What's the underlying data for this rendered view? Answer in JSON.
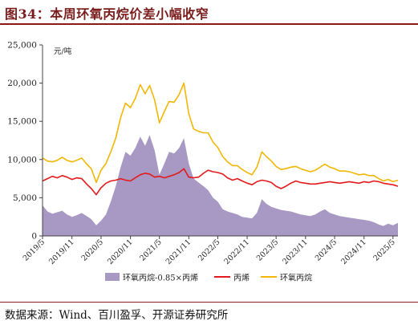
{
  "title": "图34：本周环氧丙烷价差小幅收窄",
  "source": "数据来源：Wind、百川盈孚、开源证券研究所",
  "chart_data": {
    "type": "line+area",
    "unit": "元/吨",
    "ylim": [
      0,
      25000
    ],
    "y_ticks": [
      "0",
      "5,000",
      "10,000",
      "15,000",
      "20,000",
      "25,000"
    ],
    "x_ticks": [
      "2019/5",
      "2019/11",
      "2020/5",
      "2020/11",
      "2021/5",
      "2021/11",
      "2022/5",
      "2022/11",
      "2023/5",
      "2023/11",
      "2024/5",
      "2024/11",
      "2025/5"
    ],
    "legend_placement": "bottom",
    "colors": {
      "spread": "#a898c4",
      "propylene": "#e31a1c",
      "po": "#f2b705"
    },
    "series": [
      {
        "name": "环氧丙烷-0.85×丙烯",
        "kind": "area",
        "points": [
          [
            "2019-05-01",
            4000
          ],
          [
            "2019-06-01",
            3200
          ],
          [
            "2019-07-01",
            2900
          ],
          [
            "2019-08-01",
            3100
          ],
          [
            "2019-09-01",
            3300
          ],
          [
            "2019-10-01",
            2800
          ],
          [
            "2019-11-01",
            2500
          ],
          [
            "2019-12-01",
            2700
          ],
          [
            "2020-01-01",
            3000
          ],
          [
            "2020-02-01",
            2600
          ],
          [
            "2020-03-01",
            2200
          ],
          [
            "2020-04-01",
            1400
          ],
          [
            "2020-05-01",
            2000
          ],
          [
            "2020-06-01",
            2800
          ],
          [
            "2020-07-01",
            4500
          ],
          [
            "2020-08-01",
            6500
          ],
          [
            "2020-09-01",
            9000
          ],
          [
            "2020-10-01",
            11000
          ],
          [
            "2020-11-01",
            10500
          ],
          [
            "2020-12-01",
            11500
          ],
          [
            "2021-01-01",
            13000
          ],
          [
            "2021-02-01",
            11800
          ],
          [
            "2021-03-01",
            13200
          ],
          [
            "2021-04-01",
            11200
          ],
          [
            "2021-05-01",
            8000
          ],
          [
            "2021-06-01",
            9500
          ],
          [
            "2021-07-01",
            11000
          ],
          [
            "2021-08-01",
            10800
          ],
          [
            "2021-09-01",
            11500
          ],
          [
            "2021-10-01",
            12800
          ],
          [
            "2021-11-01",
            9500
          ],
          [
            "2021-12-01",
            7500
          ],
          [
            "2022-01-01",
            7000
          ],
          [
            "2022-02-01",
            6500
          ],
          [
            "2022-03-01",
            6000
          ],
          [
            "2022-04-01",
            5000
          ],
          [
            "2022-05-01",
            4500
          ],
          [
            "2022-06-01",
            3500
          ],
          [
            "2022-07-01",
            3200
          ],
          [
            "2022-08-01",
            3000
          ],
          [
            "2022-09-01",
            2800
          ],
          [
            "2022-10-01",
            2500
          ],
          [
            "2022-11-01",
            2400
          ],
          [
            "2022-12-01",
            2300
          ],
          [
            "2023-01-01",
            3000
          ],
          [
            "2023-02-01",
            4800
          ],
          [
            "2023-03-01",
            4200
          ],
          [
            "2023-04-01",
            3800
          ],
          [
            "2023-05-01",
            3600
          ],
          [
            "2023-06-01",
            3400
          ],
          [
            "2023-07-01",
            3300
          ],
          [
            "2023-08-01",
            3200
          ],
          [
            "2023-09-01",
            3000
          ],
          [
            "2023-10-01",
            2800
          ],
          [
            "2023-11-01",
            2700
          ],
          [
            "2023-12-01",
            2600
          ],
          [
            "2024-01-01",
            2800
          ],
          [
            "2024-02-01",
            3200
          ],
          [
            "2024-03-01",
            3500
          ],
          [
            "2024-04-01",
            3000
          ],
          [
            "2024-05-01",
            2800
          ],
          [
            "2024-06-01",
            2600
          ],
          [
            "2024-07-01",
            2500
          ],
          [
            "2024-08-01",
            2400
          ],
          [
            "2024-09-01",
            2300
          ],
          [
            "2024-10-01",
            2200
          ],
          [
            "2024-11-01",
            2100
          ],
          [
            "2024-12-01",
            2000
          ],
          [
            "2025-01-01",
            1800
          ],
          [
            "2025-02-01",
            1500
          ],
          [
            "2025-03-01",
            1300
          ],
          [
            "2025-04-01",
            1600
          ],
          [
            "2025-05-01",
            1400
          ],
          [
            "2025-06-01",
            1700
          ]
        ]
      },
      {
        "name": "丙烯",
        "kind": "line",
        "points": [
          [
            "2019-05-01",
            7200
          ],
          [
            "2019-06-01",
            7500
          ],
          [
            "2019-07-01",
            7800
          ],
          [
            "2019-08-01",
            7600
          ],
          [
            "2019-09-01",
            7900
          ],
          [
            "2019-10-01",
            7700
          ],
          [
            "2019-11-01",
            7400
          ],
          [
            "2019-12-01",
            7600
          ],
          [
            "2020-01-01",
            7500
          ],
          [
            "2020-02-01",
            6800
          ],
          [
            "2020-03-01",
            6200
          ],
          [
            "2020-04-01",
            5400
          ],
          [
            "2020-05-01",
            6300
          ],
          [
            "2020-06-01",
            6900
          ],
          [
            "2020-07-01",
            7200
          ],
          [
            "2020-08-01",
            7300
          ],
          [
            "2020-09-01",
            7500
          ],
          [
            "2020-10-01",
            7300
          ],
          [
            "2020-11-01",
            7200
          ],
          [
            "2020-12-01",
            7600
          ],
          [
            "2021-01-01",
            8000
          ],
          [
            "2021-02-01",
            8200
          ],
          [
            "2021-03-01",
            8100
          ],
          [
            "2021-04-01",
            7700
          ],
          [
            "2021-05-01",
            7800
          ],
          [
            "2021-06-01",
            7600
          ],
          [
            "2021-07-01",
            7800
          ],
          [
            "2021-08-01",
            8000
          ],
          [
            "2021-09-01",
            8300
          ],
          [
            "2021-10-01",
            8800
          ],
          [
            "2021-11-01",
            7700
          ],
          [
            "2021-12-01",
            7600
          ],
          [
            "2022-01-01",
            7700
          ],
          [
            "2022-02-01",
            8200
          ],
          [
            "2022-03-01",
            8600
          ],
          [
            "2022-04-01",
            8400
          ],
          [
            "2022-05-01",
            8300
          ],
          [
            "2022-06-01",
            8100
          ],
          [
            "2022-07-01",
            7600
          ],
          [
            "2022-08-01",
            7300
          ],
          [
            "2022-09-01",
            7500
          ],
          [
            "2022-10-01",
            7200
          ],
          [
            "2022-11-01",
            6900
          ],
          [
            "2022-12-01",
            6700
          ],
          [
            "2023-01-01",
            7100
          ],
          [
            "2023-02-01",
            7300
          ],
          [
            "2023-03-01",
            7200
          ],
          [
            "2023-04-01",
            7000
          ],
          [
            "2023-05-01",
            6500
          ],
          [
            "2023-06-01",
            6200
          ],
          [
            "2023-07-01",
            6500
          ],
          [
            "2023-08-01",
            6900
          ],
          [
            "2023-09-01",
            7200
          ],
          [
            "2023-10-01",
            7000
          ],
          [
            "2023-11-01",
            6900
          ],
          [
            "2023-12-01",
            6800
          ],
          [
            "2024-01-01",
            6800
          ],
          [
            "2024-02-01",
            6900
          ],
          [
            "2024-03-01",
            7000
          ],
          [
            "2024-04-01",
            7100
          ],
          [
            "2024-05-01",
            7000
          ],
          [
            "2024-06-01",
            6900
          ],
          [
            "2024-07-01",
            7000
          ],
          [
            "2024-08-01",
            7100
          ],
          [
            "2024-09-01",
            7000
          ],
          [
            "2024-10-01",
            6900
          ],
          [
            "2024-11-01",
            7100
          ],
          [
            "2024-12-01",
            7000
          ],
          [
            "2025-01-01",
            7200
          ],
          [
            "2025-02-01",
            7100
          ],
          [
            "2025-03-01",
            6900
          ],
          [
            "2025-04-01",
            6800
          ],
          [
            "2025-05-01",
            6700
          ],
          [
            "2025-06-01",
            6500
          ]
        ]
      },
      {
        "name": "环氧丙烷",
        "kind": "line",
        "points": [
          [
            "2019-05-01",
            10200
          ],
          [
            "2019-06-01",
            9800
          ],
          [
            "2019-07-01",
            9700
          ],
          [
            "2019-08-01",
            9900
          ],
          [
            "2019-09-01",
            10300
          ],
          [
            "2019-10-01",
            9900
          ],
          [
            "2019-11-01",
            9700
          ],
          [
            "2019-12-01",
            9900
          ],
          [
            "2020-01-01",
            10200
          ],
          [
            "2020-02-01",
            9400
          ],
          [
            "2020-03-01",
            8800
          ],
          [
            "2020-04-01",
            7000
          ],
          [
            "2020-05-01",
            8600
          ],
          [
            "2020-06-01",
            9500
          ],
          [
            "2020-07-01",
            11000
          ],
          [
            "2020-08-01",
            12800
          ],
          [
            "2020-09-01",
            15500
          ],
          [
            "2020-10-01",
            17400
          ],
          [
            "2020-11-01",
            16800
          ],
          [
            "2020-12-01",
            18000
          ],
          [
            "2021-01-01",
            19800
          ],
          [
            "2021-02-01",
            18600
          ],
          [
            "2021-03-01",
            19700
          ],
          [
            "2021-04-01",
            17800
          ],
          [
            "2021-05-01",
            14800
          ],
          [
            "2021-06-01",
            16300
          ],
          [
            "2021-07-01",
            17600
          ],
          [
            "2021-08-01",
            17500
          ],
          [
            "2021-09-01",
            18500
          ],
          [
            "2021-10-01",
            20000
          ],
          [
            "2021-11-01",
            16000
          ],
          [
            "2021-12-01",
            14000
          ],
          [
            "2022-01-01",
            13700
          ],
          [
            "2022-02-01",
            13500
          ],
          [
            "2022-03-01",
            13500
          ],
          [
            "2022-04-01",
            12300
          ],
          [
            "2022-05-01",
            11600
          ],
          [
            "2022-06-01",
            10400
          ],
          [
            "2022-07-01",
            9700
          ],
          [
            "2022-08-01",
            9200
          ],
          [
            "2022-09-01",
            9200
          ],
          [
            "2022-10-01",
            8700
          ],
          [
            "2022-11-01",
            8300
          ],
          [
            "2022-12-01",
            8000
          ],
          [
            "2023-01-01",
            9000
          ],
          [
            "2023-02-01",
            11000
          ],
          [
            "2023-03-01",
            10400
          ],
          [
            "2023-04-01",
            9800
          ],
          [
            "2023-05-01",
            9100
          ],
          [
            "2023-06-01",
            8700
          ],
          [
            "2023-07-01",
            8800
          ],
          [
            "2023-08-01",
            9000
          ],
          [
            "2023-09-01",
            9100
          ],
          [
            "2023-10-01",
            8800
          ],
          [
            "2023-11-01",
            8600
          ],
          [
            "2023-12-01",
            8400
          ],
          [
            "2024-01-01",
            8600
          ],
          [
            "2024-02-01",
            9000
          ],
          [
            "2024-03-01",
            9400
          ],
          [
            "2024-04-01",
            9000
          ],
          [
            "2024-05-01",
            8800
          ],
          [
            "2024-06-01",
            8500
          ],
          [
            "2024-07-01",
            8500
          ],
          [
            "2024-08-01",
            8400
          ],
          [
            "2024-09-01",
            8200
          ],
          [
            "2024-10-01",
            8000
          ],
          [
            "2024-11-01",
            8100
          ],
          [
            "2024-12-01",
            7900
          ],
          [
            "2025-01-01",
            7900
          ],
          [
            "2025-02-01",
            7500
          ],
          [
            "2025-03-01",
            7200
          ],
          [
            "2025-04-01",
            7400
          ],
          [
            "2025-05-01",
            7100
          ],
          [
            "2025-06-01",
            7300
          ]
        ]
      }
    ]
  }
}
